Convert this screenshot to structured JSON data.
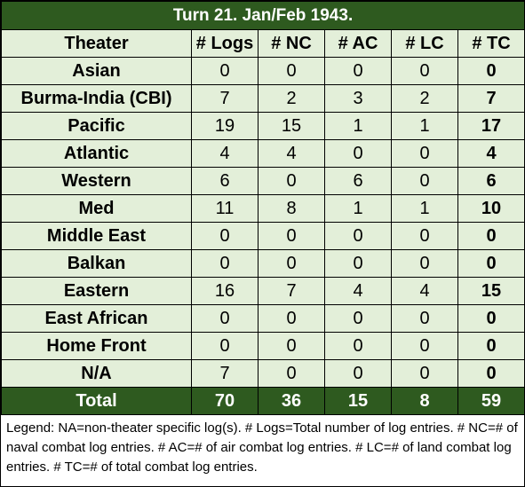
{
  "title": "Turn 21.  Jan/Feb 1943.",
  "headers": [
    "Theater",
    "# Logs",
    "# NC",
    "# AC",
    "# LC",
    "# TC"
  ],
  "rows": [
    {
      "theater": "Asian",
      "logs": "0",
      "nc": "0",
      "ac": "0",
      "lc": "0",
      "tc": "0"
    },
    {
      "theater": "Burma-India (CBI)",
      "logs": "7",
      "nc": "2",
      "ac": "3",
      "lc": "2",
      "tc": "7"
    },
    {
      "theater": "Pacific",
      "logs": "19",
      "nc": "15",
      "ac": "1",
      "lc": "1",
      "tc": "17"
    },
    {
      "theater": "Atlantic",
      "logs": "4",
      "nc": "4",
      "ac": "0",
      "lc": "0",
      "tc": "4"
    },
    {
      "theater": "Western",
      "logs": "6",
      "nc": "0",
      "ac": "6",
      "lc": "0",
      "tc": "6"
    },
    {
      "theater": "Med",
      "logs": "11",
      "nc": "8",
      "ac": "1",
      "lc": "1",
      "tc": "10"
    },
    {
      "theater": "Middle East",
      "logs": "0",
      "nc": "0",
      "ac": "0",
      "lc": "0",
      "tc": "0"
    },
    {
      "theater": "Balkan",
      "logs": "0",
      "nc": "0",
      "ac": "0",
      "lc": "0",
      "tc": "0"
    },
    {
      "theater": "Eastern",
      "logs": "16",
      "nc": "7",
      "ac": "4",
      "lc": "4",
      "tc": "15"
    },
    {
      "theater": "East African",
      "logs": "0",
      "nc": "0",
      "ac": "0",
      "lc": "0",
      "tc": "0"
    },
    {
      "theater": "Home Front",
      "logs": "0",
      "nc": "0",
      "ac": "0",
      "lc": "0",
      "tc": "0"
    },
    {
      "theater": "N/A",
      "logs": "7",
      "nc": "0",
      "ac": "0",
      "lc": "0",
      "tc": "0"
    }
  ],
  "total": {
    "theater": "Total",
    "logs": "70",
    "nc": "36",
    "ac": "15",
    "lc": "8",
    "tc": "59"
  },
  "legend": "Legend:  NA=non-theater specific log(s).  # Logs=Total number of log entries.  # NC=# of naval combat log entries.  # AC=# of air combat log entries.  # LC=# of land combat log entries.  # TC=# of total combat log entries.",
  "colors": {
    "dark_green": "#2e5a1f",
    "light_green": "#e3efd9"
  }
}
